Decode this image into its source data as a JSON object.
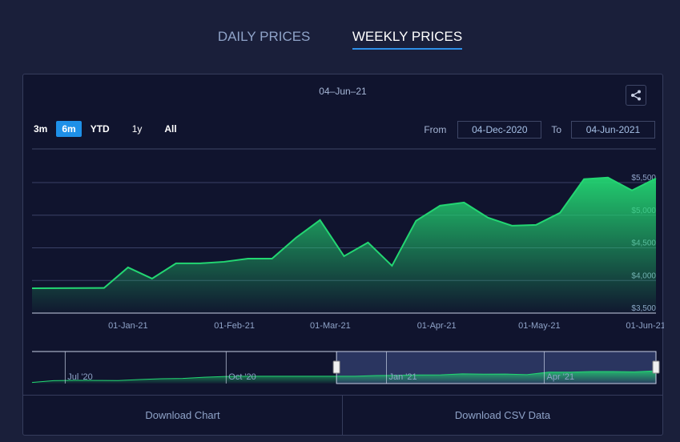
{
  "tabs": [
    {
      "label": "DAILY PRICES"
    },
    {
      "label": "WEEKLY PRICES"
    }
  ],
  "ranges": [
    "3m",
    "6m",
    "YTD",
    "1y",
    "All"
  ],
  "range_from_label": "From",
  "range_to_label": "To",
  "from": "04-Dec-2020",
  "to": "04-Jun-2021",
  "download_chart": "Download Chart",
  "download_csv": "Download CSV Data",
  "colors": {
    "line": "#23d672",
    "accent": "#1e90e8"
  },
  "chart_data": {
    "type": "area",
    "title": "04–Jun–21",
    "x": [
      "04-Dec-20",
      "11-Dec-20",
      "18-Dec-20",
      "25-Dec-20",
      "01-Jan-21",
      "08-Jan-21",
      "15-Jan-21",
      "22-Jan-21",
      "29-Jan-21",
      "05-Feb-21",
      "12-Feb-21",
      "19-Feb-21",
      "26-Feb-21",
      "05-Mar-21",
      "12-Mar-21",
      "19-Mar-21",
      "26-Mar-21",
      "02-Apr-21",
      "09-Apr-21",
      "16-Apr-21",
      "23-Apr-21",
      "30-Apr-21",
      "07-May-21",
      "14-May-21",
      "21-May-21",
      "28-May-21",
      "04-Jun-21"
    ],
    "values": [
      3880,
      3882,
      3884,
      3885,
      4200,
      4028,
      4262,
      4262,
      4286,
      4335,
      4335,
      4655,
      4925,
      4372,
      4581,
      4225,
      4913,
      5146,
      5195,
      4962,
      4839,
      4851,
      5036,
      5552,
      5576,
      5380,
      5564
    ],
    "ylim": [
      3500,
      5500
    ],
    "yticks": [
      {
        "v": 3500,
        "label": "$3,500"
      },
      {
        "v": 4000,
        "label": "$4,000"
      },
      {
        "v": 4500,
        "label": "$4,500"
      },
      {
        "v": 5000,
        "label": "$5,000"
      },
      {
        "v": 5500,
        "label": "$5,500"
      }
    ],
    "xticks": [
      {
        "i": 4,
        "label": "01-Jan-21"
      },
      {
        "i": 8.43,
        "label": "01-Feb-21"
      },
      {
        "i": 12.43,
        "label": "01-Mar-21"
      },
      {
        "i": 16.86,
        "label": "01-Apr-21"
      },
      {
        "i": 21.14,
        "label": "01-May-21"
      },
      {
        "i": 25.57,
        "label": "01-Jun-21"
      }
    ],
    "grid": true,
    "navigator": {
      "ticks": [
        {
          "f": 0.053,
          "label": "Jul '20"
        },
        {
          "f": 0.311,
          "label": "Oct '20"
        },
        {
          "f": 0.568,
          "label": "Jan '21"
        },
        {
          "f": 0.821,
          "label": "Apr '21"
        }
      ],
      "selection": [
        0.488,
        1.0
      ],
      "values": [
        3000,
        3150,
        3180,
        3170,
        3160,
        3250,
        3320,
        3350,
        3450,
        3520,
        3540,
        3540,
        3540,
        3540,
        3540,
        3540,
        3600,
        3620,
        3650,
        3660,
        3750,
        3720,
        3730,
        3680,
        3900,
        3900,
        3950,
        3950,
        3920,
        4010
      ]
    }
  }
}
